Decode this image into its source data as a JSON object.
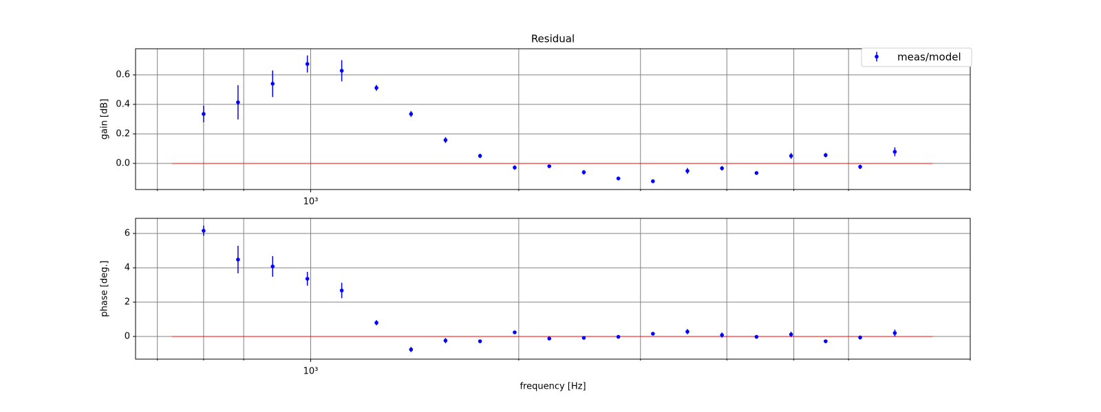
{
  "chart_data": [
    {
      "type": "errorbar",
      "title": "Residual",
      "ylabel": "gain [dB]",
      "xscale": "log",
      "x": [
        700,
        785,
        881,
        989,
        1109,
        1245,
        1397,
        1567,
        1758,
        1973,
        2214,
        2484,
        2787,
        3127,
        3508,
        3936,
        4416,
        4955,
        5559,
        6237,
        7000
      ],
      "series": [
        {
          "name": "meas/model",
          "color": "#0000ff",
          "values": [
            0.335,
            0.414,
            0.54,
            0.674,
            0.628,
            0.512,
            0.335,
            0.158,
            0.051,
            -0.028,
            -0.019,
            -0.06,
            -0.102,
            -0.121,
            -0.051,
            -0.033,
            -0.065,
            0.051,
            0.056,
            -0.023,
            0.079
          ],
          "errors": [
            0.056,
            0.116,
            0.09,
            0.058,
            0.072,
            0.02,
            0.02,
            0.02,
            0.015,
            0.015,
            0.01,
            0.015,
            0.01,
            0.01,
            0.02,
            0.015,
            0.01,
            0.02,
            0.015,
            0.015,
            0.03
          ]
        }
      ],
      "reference": {
        "x": [
          630,
          7940
        ],
        "values": [
          0,
          0
        ],
        "color": "#ff0000"
      },
      "xlim": [
        558,
        9000
      ],
      "xticks": [
        {
          "value": 1000,
          "label": "10³"
        }
      ],
      "xminor": [
        600,
        700,
        800,
        2000,
        3000,
        4000,
        5000,
        6000,
        9000
      ],
      "ylim": [
        -0.177,
        0.777
      ],
      "yticks": [
        {
          "value": 0,
          "label": "0.0"
        },
        0.2,
        0.4,
        0.6
      ],
      "grid": true,
      "legend": "upper right"
    },
    {
      "type": "errorbar",
      "ylabel": "phase [deg.]",
      "xlabel": "frequency [Hz]",
      "xscale": "log",
      "x": [
        700,
        785,
        881,
        989,
        1109,
        1245,
        1397,
        1567,
        1758,
        1973,
        2214,
        2484,
        2787,
        3127,
        3508,
        3936,
        4416,
        4955,
        5559,
        6237,
        7000
      ],
      "series": [
        {
          "color": "#0000ff",
          "values": [
            6.16,
            4.48,
            4.08,
            3.36,
            2.68,
            0.8,
            -0.76,
            -0.24,
            -0.28,
            0.24,
            -0.12,
            -0.08,
            -0.02,
            0.16,
            0.28,
            0.08,
            -0.02,
            0.12,
            -0.28,
            -0.06,
            0.2
          ],
          "errors": [
            0.3,
            0.8,
            0.6,
            0.4,
            0.45,
            0.15,
            0.15,
            0.15,
            0.1,
            0.1,
            0.05,
            0.1,
            0.05,
            0.05,
            0.15,
            0.15,
            0.05,
            0.15,
            0.1,
            0.12,
            0.2
          ]
        }
      ],
      "reference": {
        "x": [
          630,
          7940
        ],
        "values": [
          0,
          0
        ],
        "color": "#ff0000"
      },
      "xlim": [
        558,
        9000
      ],
      "xticks": [
        {
          "value": 1000,
          "label": "10³"
        }
      ],
      "xminor": [
        600,
        700,
        800,
        2000,
        3000,
        4000,
        5000,
        6000,
        9000
      ],
      "ylim": [
        -1.32,
        6.88
      ],
      "yticks": [
        0,
        2,
        4,
        6
      ],
      "grid": true
    }
  ]
}
